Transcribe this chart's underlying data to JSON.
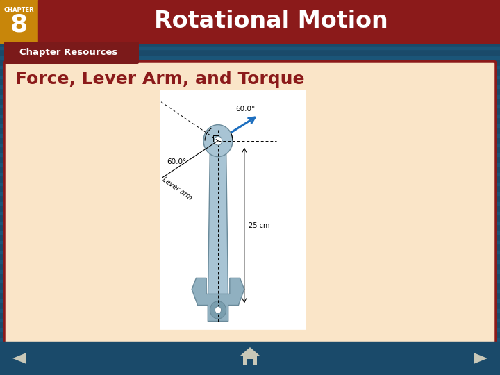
{
  "title": "Rotational Motion",
  "chapter_label": "CHAPTER",
  "chapter_number": "8",
  "tab_label": "Chapter Resources",
  "slide_title": "Force, Lever Arm, and Torque",
  "bg_header_color": "#8B1A1A",
  "bg_chapter_box_color": "#C8860A",
  "bg_tab_color": "#7B1A1A",
  "bg_stripe_dark": "#1A4A6A",
  "bg_stripe_light": "#1B5578",
  "bg_content_color": "#FAE5C8",
  "border_color": "#8B1A1A",
  "title_text_color": "#FFFFFF",
  "chapter_text_color": "#FFFFFF",
  "slide_title_color": "#8B1A1A",
  "nav_icon_color": "#C8C8B8",
  "footer_color": "#1A4A6A",
  "wrench_color": "#A8C4D4",
  "wrench_edge": "#6A8A9A",
  "force_arrow_color": "#1E6FBF"
}
